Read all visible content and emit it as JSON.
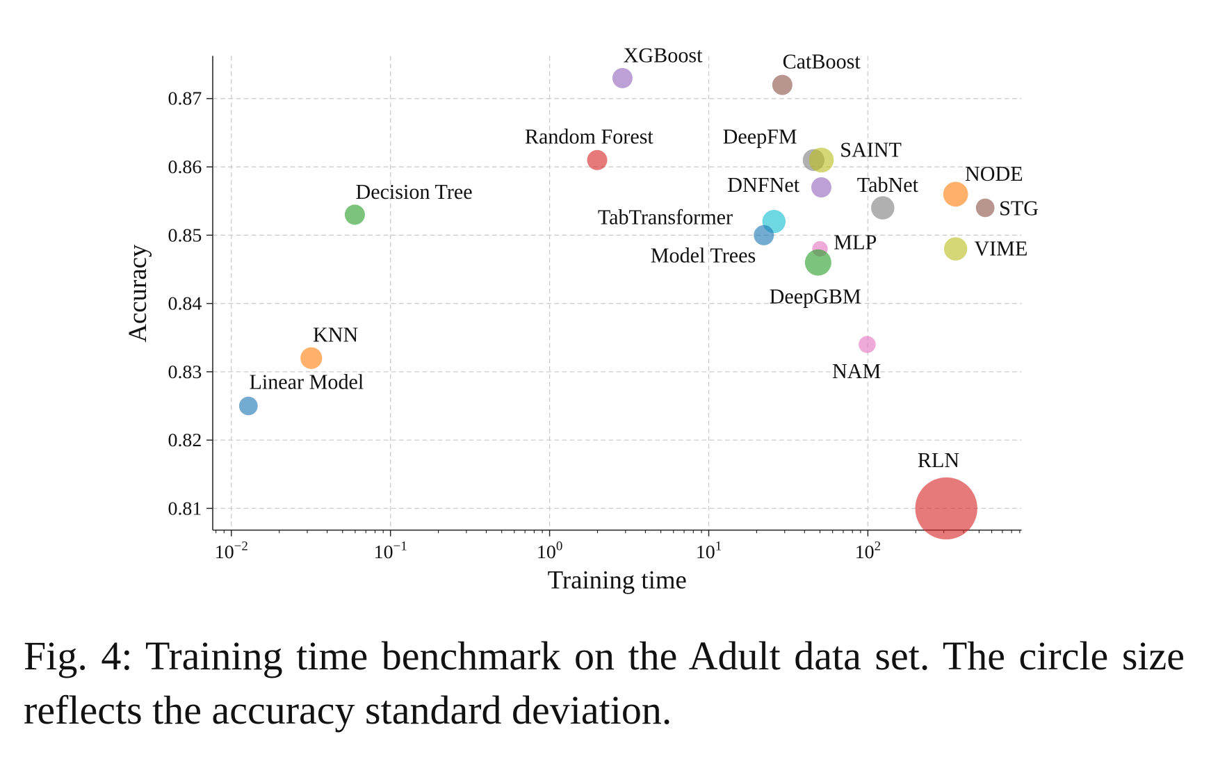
{
  "chart_data": {
    "type": "scatter",
    "xlabel": "Training time",
    "ylabel": "Accuracy",
    "xscale": "log",
    "xlim": [
      0.008,
      900
    ],
    "ylim": [
      0.8069,
      0.8762
    ],
    "xticks": [
      0.01,
      0.1,
      1,
      10,
      100
    ],
    "xtick_labels": [
      {
        "base": "10",
        "exp": "−2"
      },
      {
        "base": "10",
        "exp": "−1"
      },
      {
        "base": "10",
        "exp": "0"
      },
      {
        "base": "10",
        "exp": "1"
      },
      {
        "base": "10",
        "exp": "2"
      }
    ],
    "yticks": [
      0.81,
      0.82,
      0.83,
      0.84,
      0.85,
      0.86,
      0.87
    ],
    "ytick_labels": [
      "0.81",
      "0.82",
      "0.83",
      "0.84",
      "0.85",
      "0.86",
      "0.87"
    ],
    "grid": true,
    "size_encoding": "accuracy standard deviation (relative)",
    "points": [
      {
        "name": "Linear Model",
        "x": 0.0128,
        "y": 0.825,
        "size": 1.2,
        "color": "#1f77b4"
      },
      {
        "name": "KNN",
        "x": 0.0318,
        "y": 0.832,
        "size": 1.4,
        "color": "#ff7f0e"
      },
      {
        "name": "Decision Tree",
        "x": 0.0597,
        "y": 0.853,
        "size": 1.3,
        "color": "#2ca02c"
      },
      {
        "name": "Random Forest",
        "x": 1.99,
        "y": 0.861,
        "size": 1.3,
        "color": "#d62728"
      },
      {
        "name": "XGBoost",
        "x": 2.87,
        "y": 0.873,
        "size": 1.3,
        "color": "#9467bd"
      },
      {
        "name": "CatBoost",
        "x": 29,
        "y": 0.872,
        "size": 1.3,
        "color": "#8c564b"
      },
      {
        "name": "DeepFM",
        "x": 45.6,
        "y": 0.861,
        "size": 1.4,
        "color": "#7f7f7f"
      },
      {
        "name": "SAINT",
        "x": 51,
        "y": 0.861,
        "size": 1.6,
        "color": "#bcbd22"
      },
      {
        "name": "DNFNet",
        "x": 51,
        "y": 0.857,
        "size": 1.3,
        "color": "#9467bd"
      },
      {
        "name": "TabNet",
        "x": 124,
        "y": 0.854,
        "size": 1.5,
        "color": "#7f7f7f"
      },
      {
        "name": "NODE",
        "x": 356,
        "y": 0.856,
        "size": 1.6,
        "color": "#ff7f0e"
      },
      {
        "name": "STG",
        "x": 546,
        "y": 0.854,
        "size": 1.2,
        "color": "#8c564b"
      },
      {
        "name": "TabTransformer",
        "x": 25.7,
        "y": 0.852,
        "size": 1.5,
        "color": "#17becf"
      },
      {
        "name": "Model Trees",
        "x": 22.2,
        "y": 0.85,
        "size": 1.3,
        "color": "#1f77b4"
      },
      {
        "name": "MLP",
        "x": 50,
        "y": 0.848,
        "size": 1.0,
        "color": "#e377c2"
      },
      {
        "name": "DeepGBM",
        "x": 48.7,
        "y": 0.846,
        "size": 1.7,
        "color": "#2ca02c"
      },
      {
        "name": "VIME",
        "x": 356,
        "y": 0.848,
        "size": 1.5,
        "color": "#bcbd22"
      },
      {
        "name": "NAM",
        "x": 99,
        "y": 0.834,
        "size": 1.1,
        "color": "#e377c2"
      },
      {
        "name": "RLN",
        "x": 311,
        "y": 0.81,
        "size": 4.0,
        "color": "#d62728"
      }
    ]
  },
  "caption": "Fig. 4: Training time benchmark on the Adult data set. The circle size reflects the accuracy standard deviation."
}
